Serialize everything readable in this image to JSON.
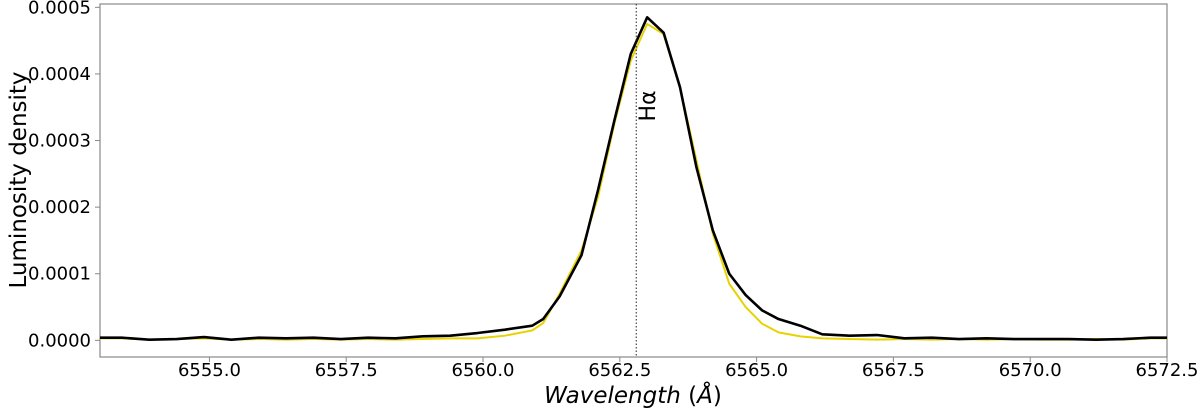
{
  "chart_data": {
    "type": "line",
    "title": "",
    "xlabel": "Wavelength (Å)",
    "ylabel": "Luminosity density",
    "xlim": [
      6553.0,
      6572.5
    ],
    "ylim": [
      -2.5e-05,
      0.000505
    ],
    "xticks": [
      6555.0,
      6557.5,
      6560.0,
      6562.5,
      6565.0,
      6567.5,
      6570.0,
      6572.5
    ],
    "xtick_labels": [
      "6555.0",
      "6557.5",
      "6560.0",
      "6562.5",
      "6565.0",
      "6567.5",
      "6570.0",
      "6572.5"
    ],
    "yticks": [
      0.0,
      0.0001,
      0.0002,
      0.0003,
      0.0004,
      0.0005
    ],
    "ytick_labels": [
      "0.0000",
      "0.0001",
      "0.0002",
      "0.0003",
      "0.0004",
      "0.0005"
    ],
    "grid": false,
    "legend": "none",
    "annotations": [
      {
        "text": "Hα",
        "x": 6562.8,
        "style": "vertical dotted line, rotated label"
      }
    ],
    "series": [
      {
        "color": "#e8d200",
        "x": [
          6553.0,
          6553.4,
          6553.9,
          6554.4,
          6554.9,
          6555.4,
          6555.9,
          6556.4,
          6556.9,
          6557.4,
          6557.9,
          6558.4,
          6558.9,
          6559.4,
          6559.9,
          6560.4,
          6560.9,
          6561.1,
          6561.4,
          6561.8,
          6562.1,
          6562.4,
          6562.7,
          6563.0,
          6563.3,
          6563.6,
          6563.9,
          6564.2,
          6564.5,
          6564.8,
          6565.1,
          6565.4,
          6565.8,
          6566.2,
          6566.7,
          6567.2,
          6567.7,
          6568.2,
          6568.7,
          6569.2,
          6569.7,
          6570.2,
          6570.7,
          6571.2,
          6571.7,
          6572.2,
          6572.5
        ],
        "y": [
          3e-06,
          3e-06,
          1e-06,
          2e-06,
          3e-06,
          1e-06,
          2e-06,
          1e-06,
          2e-06,
          1e-06,
          2e-06,
          1e-06,
          2e-06,
          3e-06,
          3e-06,
          7e-06,
          1.5e-05,
          2.6e-05,
          7e-05,
          0.000135,
          0.000215,
          0.000325,
          0.00042,
          0.000475,
          0.00046,
          0.00038,
          0.00027,
          0.00016,
          8.5e-05,
          5e-05,
          2.5e-05,
          1.2e-05,
          6e-06,
          3e-06,
          2e-06,
          1e-06,
          2e-06,
          1e-06,
          2e-06,
          1e-06,
          2e-06,
          1e-06,
          1e-06,
          2e-06,
          1e-06,
          3e-06,
          3e-06
        ]
      },
      {
        "color": "#000000",
        "x": [
          6553.0,
          6553.4,
          6553.9,
          6554.4,
          6554.9,
          6555.4,
          6555.9,
          6556.4,
          6556.9,
          6557.4,
          6557.9,
          6558.4,
          6558.9,
          6559.4,
          6559.9,
          6560.4,
          6560.9,
          6561.1,
          6561.4,
          6561.8,
          6562.1,
          6562.4,
          6562.7,
          6563.0,
          6563.3,
          6563.6,
          6563.9,
          6564.2,
          6564.5,
          6564.8,
          6565.1,
          6565.4,
          6565.8,
          6566.2,
          6566.7,
          6567.2,
          6567.7,
          6568.2,
          6568.7,
          6569.2,
          6569.7,
          6570.2,
          6570.7,
          6571.2,
          6571.7,
          6572.2,
          6572.5
        ],
        "y": [
          4e-06,
          4e-06,
          1e-06,
          2e-06,
          5e-06,
          1e-06,
          4e-06,
          3e-06,
          4e-06,
          2e-06,
          4e-06,
          3e-06,
          6e-06,
          7e-06,
          1.1e-05,
          1.6e-05,
          2.2e-05,
          3.2e-05,
          6.6e-05,
          0.000128,
          0.000225,
          0.00033,
          0.00043,
          0.000485,
          0.000462,
          0.00038,
          0.00026,
          0.000165,
          0.0001,
          6.8e-05,
          4.5e-05,
          3.2e-05,
          2.2e-05,
          9e-06,
          7e-06,
          8e-06,
          3e-06,
          4e-06,
          2e-06,
          3e-06,
          2e-06,
          2e-06,
          2e-06,
          1e-06,
          2e-06,
          4e-06,
          4e-06
        ]
      }
    ]
  }
}
